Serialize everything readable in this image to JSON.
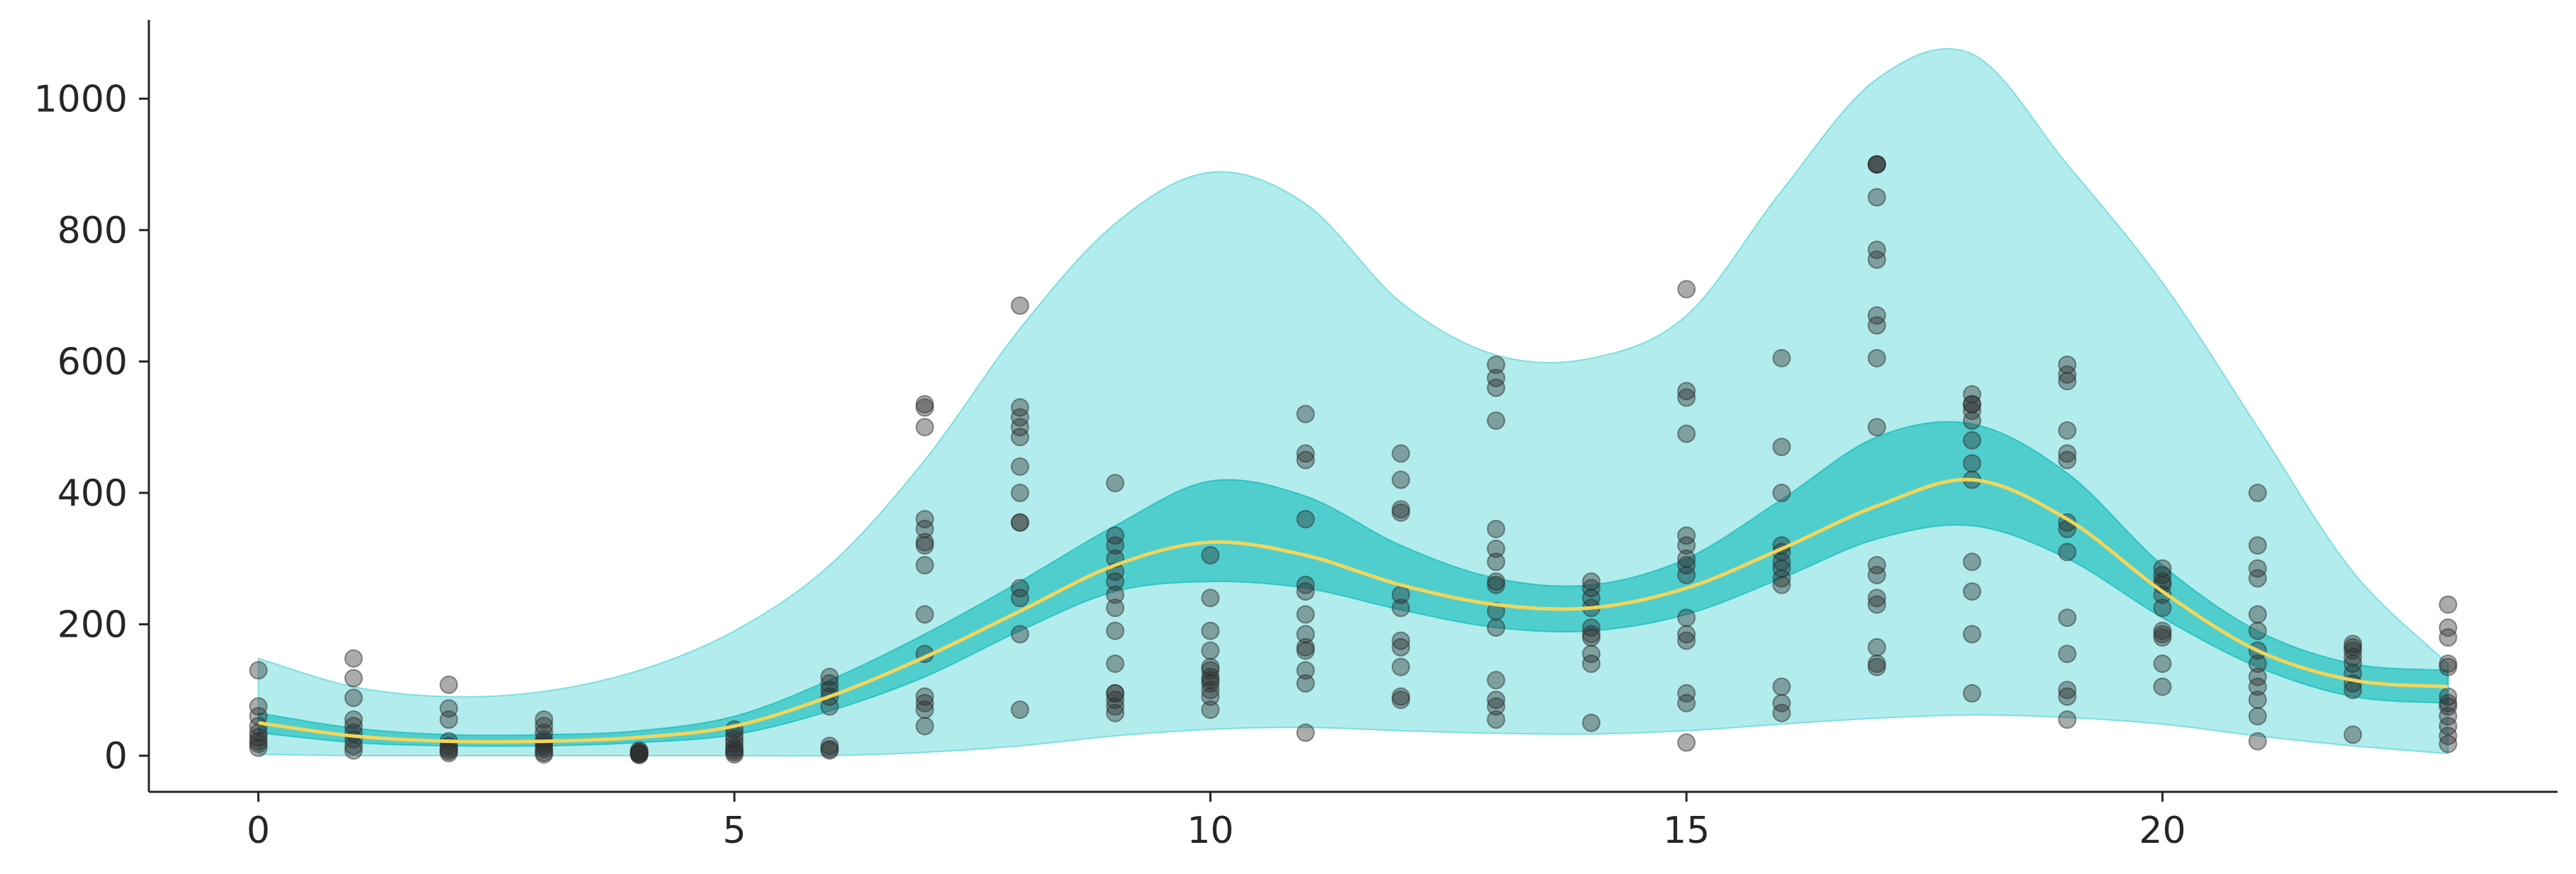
{
  "chart_data": {
    "type": "scatter",
    "title": "",
    "xlabel": "",
    "ylabel": "",
    "xlim": [
      -1.15,
      24.15
    ],
    "ylim": [
      -55,
      1120
    ],
    "x_ticks": [
      0,
      5,
      10,
      15,
      20
    ],
    "y_ticks": [
      0,
      200,
      400,
      600,
      800,
      1000
    ],
    "grid": false,
    "legend": "none",
    "colors": {
      "outer_band": "#00c0c0",
      "inner_band": "#00b6b6",
      "mean_line": "#f2d65a",
      "points": "#2e2e2e",
      "axis": "#262626"
    },
    "bands": {
      "x": [
        0,
        1,
        2,
        3,
        4,
        5,
        6,
        7,
        8,
        9,
        10,
        11,
        12,
        13,
        14,
        15,
        16,
        17,
        18,
        19,
        20,
        21,
        22,
        23
      ],
      "mean": [
        50,
        30,
        22,
        22,
        28,
        45,
        90,
        150,
        220,
        290,
        325,
        305,
        260,
        230,
        225,
        255,
        315,
        380,
        420,
        360,
        250,
        160,
        115,
        105
      ],
      "inner_lower": [
        35,
        20,
        15,
        15,
        20,
        32,
        68,
        120,
        190,
        250,
        265,
        255,
        222,
        195,
        190,
        215,
        270,
        330,
        350,
        300,
        210,
        135,
        90,
        80
      ],
      "inner_upper": [
        65,
        42,
        32,
        32,
        38,
        60,
        115,
        185,
        265,
        350,
        418,
        395,
        320,
        270,
        260,
        300,
        390,
        485,
        505,
        430,
        290,
        190,
        140,
        130
      ],
      "outer_lower": [
        2,
        0,
        0,
        0,
        0,
        0,
        0,
        5,
        15,
        30,
        40,
        43,
        38,
        34,
        33,
        38,
        48,
        57,
        62,
        58,
        48,
        30,
        15,
        3
      ],
      "outer_upper": [
        148,
        105,
        90,
        98,
        130,
        190,
        290,
        450,
        650,
        810,
        888,
        840,
        690,
        610,
        605,
        670,
        860,
        1030,
        1068,
        900,
        720,
        500,
        280,
        140
      ]
    },
    "points": {
      "x": [
        0,
        0,
        0,
        0,
        0,
        0,
        0,
        0,
        0,
        1,
        1,
        1,
        1,
        1,
        1,
        1,
        1,
        1,
        2,
        2,
        2,
        2,
        2,
        2,
        2,
        2,
        3,
        3,
        3,
        3,
        3,
        3,
        3,
        3,
        3,
        4,
        4,
        4,
        4,
        4,
        4,
        4,
        5,
        5,
        5,
        5,
        5,
        5,
        5,
        5,
        6,
        6,
        6,
        6,
        6,
        6,
        6,
        6,
        7,
        7,
        7,
        7,
        7,
        7,
        7,
        7,
        7,
        7,
        7,
        7,
        7,
        7,
        8,
        8,
        8,
        8,
        8,
        8,
        8,
        8,
        8,
        8,
        8,
        8,
        8,
        9,
        9,
        9,
        9,
        9,
        9,
        9,
        9,
        9,
        9,
        9,
        9,
        9,
        9,
        9,
        10,
        10,
        10,
        10,
        10,
        10,
        10,
        10,
        10,
        10,
        10,
        10,
        11,
        11,
        11,
        11,
        11,
        11,
        11,
        11,
        11,
        11,
        11,
        11,
        11,
        12,
        12,
        12,
        12,
        12,
        12,
        12,
        12,
        12,
        12,
        12,
        13,
        13,
        13,
        13,
        13,
        13,
        13,
        13,
        13,
        13,
        13,
        13,
        13,
        13,
        13,
        14,
        14,
        14,
        14,
        14,
        14,
        14,
        14,
        14,
        14,
        15,
        15,
        15,
        15,
        15,
        15,
        15,
        15,
        15,
        15,
        15,
        15,
        15,
        15,
        15,
        16,
        16,
        16,
        16,
        16,
        16,
        16,
        16,
        16,
        16,
        16,
        16,
        17,
        17,
        17,
        17,
        17,
        17,
        17,
        17,
        17,
        17,
        17,
        17,
        17,
        17,
        17,
        17,
        17,
        18,
        18,
        18,
        18,
        18,
        18,
        18,
        18,
        18,
        18,
        18,
        18,
        19,
        19,
        19,
        19,
        19,
        19,
        19,
        19,
        19,
        19,
        19,
        19,
        19,
        19,
        20,
        20,
        20,
        20,
        20,
        20,
        20,
        20,
        20,
        20,
        20,
        21,
        21,
        21,
        21,
        21,
        21,
        21,
        21,
        21,
        21,
        21,
        21,
        21,
        22,
        22,
        22,
        22,
        22,
        22,
        22,
        22,
        22,
        23,
        23,
        23,
        23,
        23,
        23,
        23,
        23,
        23,
        23,
        23,
        23
      ],
      "y": [
        130,
        75,
        60,
        45,
        35,
        28,
        22,
        18,
        12,
        148,
        118,
        88,
        55,
        45,
        35,
        25,
        15,
        8,
        108,
        72,
        55,
        22,
        15,
        10,
        7,
        4,
        55,
        45,
        35,
        25,
        20,
        15,
        10,
        5,
        2,
        8,
        6,
        5,
        4,
        3,
        2,
        1,
        40,
        32,
        25,
        18,
        12,
        8,
        5,
        2,
        120,
        110,
        100,
        90,
        75,
        15,
        10,
        8,
        535,
        530,
        500,
        360,
        345,
        325,
        320,
        290,
        215,
        155,
        90,
        80,
        70,
        45,
        685,
        530,
        515,
        500,
        485,
        440,
        400,
        355,
        255,
        240,
        185,
        70,
        355,
        415,
        335,
        320,
        300,
        280,
        265,
        245,
        225,
        190,
        140,
        95,
        85,
        75,
        65,
        95,
        305,
        240,
        190,
        160,
        135,
        120,
        110,
        100,
        90,
        70,
        130,
        115,
        520,
        460,
        450,
        360,
        260,
        250,
        215,
        185,
        165,
        160,
        130,
        35,
        110,
        460,
        420,
        375,
        370,
        245,
        225,
        175,
        165,
        135,
        90,
        85,
        595,
        575,
        560,
        510,
        345,
        315,
        295,
        265,
        260,
        220,
        195,
        115,
        85,
        75,
        55,
        265,
        255,
        240,
        225,
        195,
        185,
        180,
        155,
        140,
        50,
        710,
        555,
        545,
        490,
        335,
        320,
        300,
        290,
        275,
        210,
        185,
        175,
        95,
        80,
        20,
        605,
        470,
        400,
        320,
        310,
        295,
        285,
        270,
        260,
        105,
        80,
        65,
        900,
        900,
        850,
        770,
        755,
        670,
        655,
        605,
        500,
        290,
        275,
        240,
        230,
        165,
        140,
        135,
        900,
        550,
        535,
        525,
        510,
        480,
        445,
        420,
        295,
        250,
        185,
        95,
        535,
        595,
        580,
        570,
        495,
        460,
        450,
        355,
        345,
        310,
        210,
        155,
        100,
        90,
        55,
        285,
        275,
        260,
        245,
        225,
        190,
        180,
        140,
        105,
        185,
        265,
        400,
        320,
        285,
        270,
        215,
        190,
        160,
        140,
        120,
        105,
        85,
        60,
        22,
        170,
        165,
        160,
        150,
        140,
        125,
        110,
        100,
        32,
        230,
        195,
        180,
        140,
        135,
        90,
        80,
        75,
        60,
        45,
        30,
        18
      ]
    }
  }
}
